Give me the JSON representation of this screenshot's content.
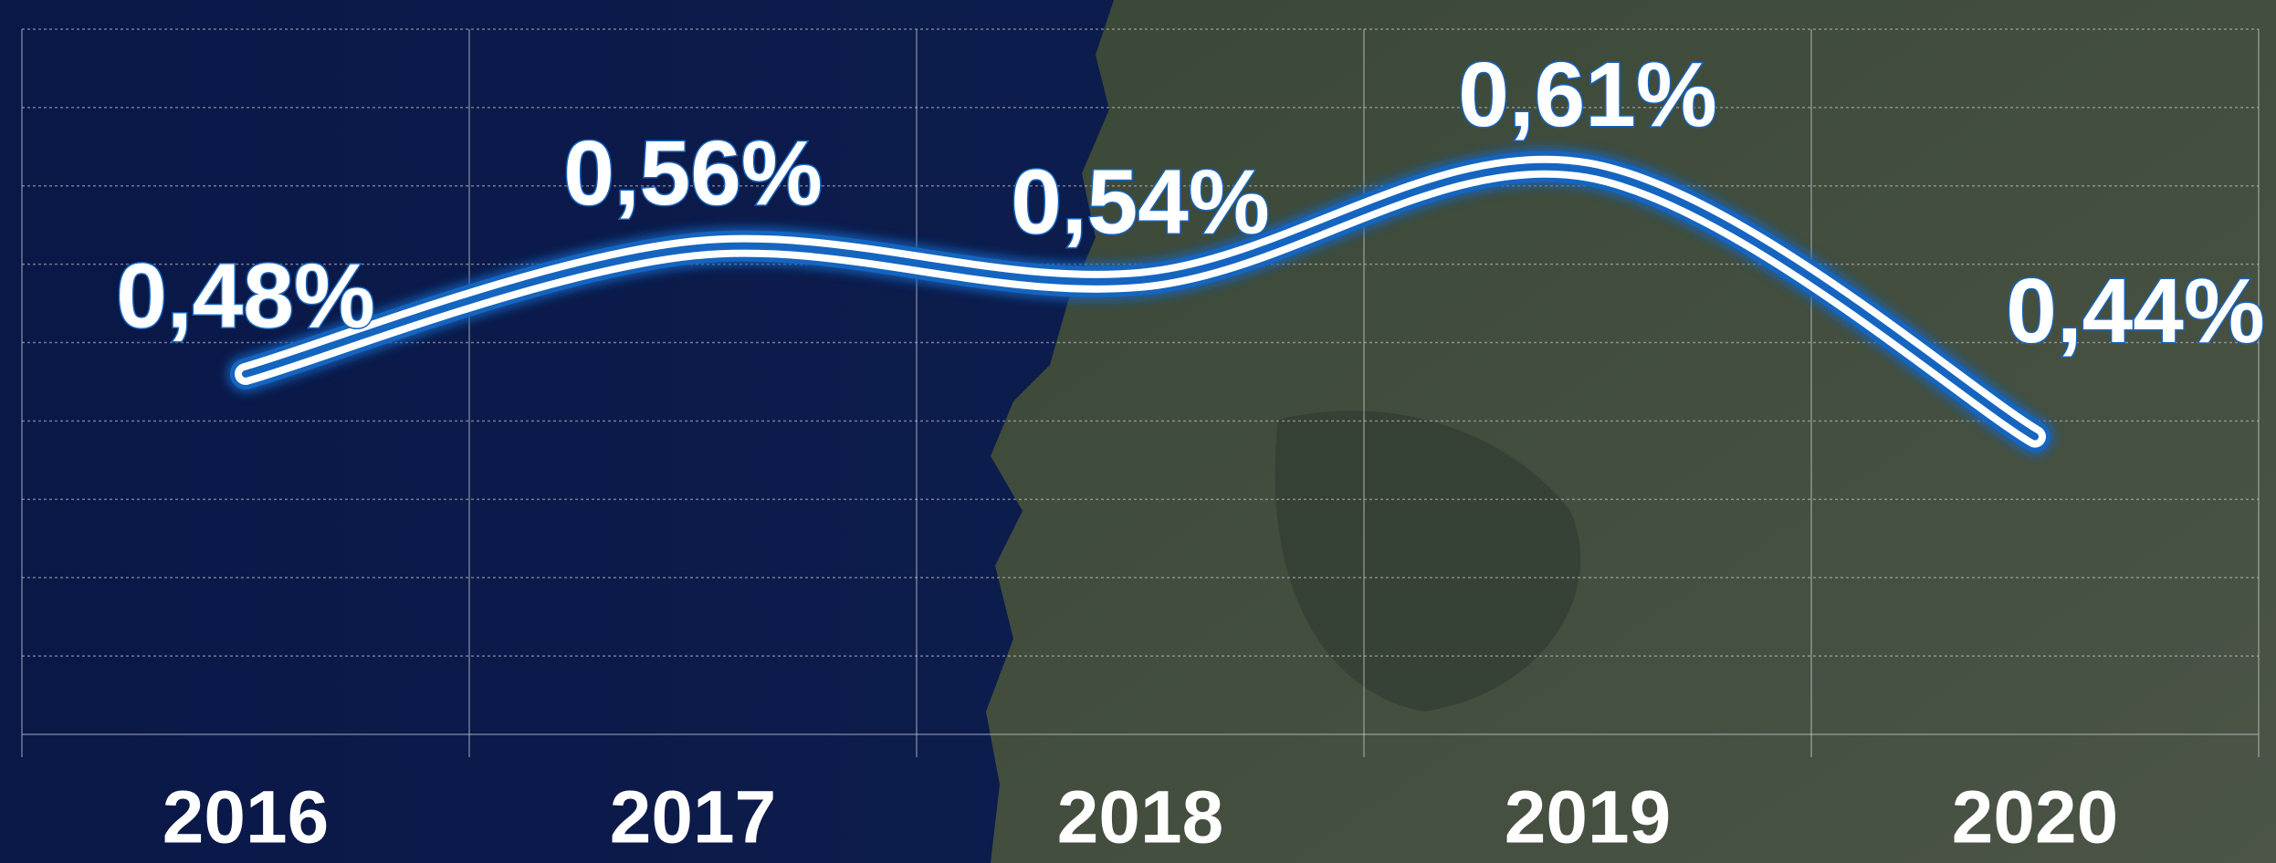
{
  "chart_data": {
    "type": "line",
    "categories": [
      "2016",
      "2017",
      "2018",
      "2019",
      "2020"
    ],
    "values": [
      0.48,
      0.56,
      0.54,
      0.61,
      0.44
    ],
    "value_labels": [
      "0,48%",
      "0,56%",
      "0,54%",
      "0,61%",
      "0,44%"
    ],
    "color": "#1565c0",
    "ylim": [
      0.25,
      0.7
    ],
    "yticks": [
      0.25,
      0.3,
      0.35,
      0.4,
      0.45,
      0.5,
      0.55,
      0.6,
      0.65,
      0.7
    ],
    "grid": true
  }
}
